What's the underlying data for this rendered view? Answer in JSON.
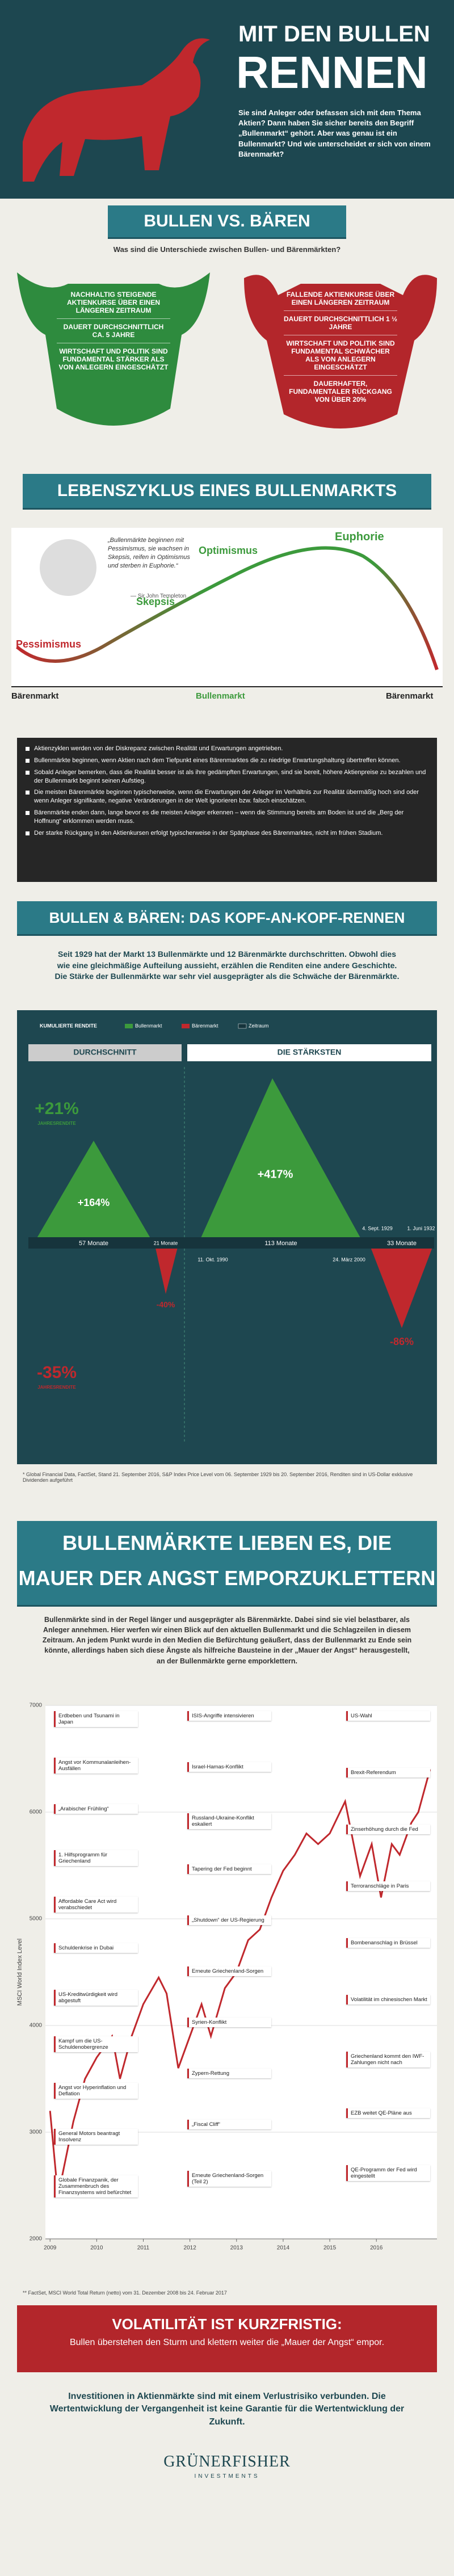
{
  "header": {
    "title_1": "MIT DEN BULLEN",
    "title_2": "RENNEN",
    "intro": "Sie sind Anleger oder befassen sich mit dem Thema Aktien? Dann haben Sie sicher bereits den Begriff „Bullenmarkt“ gehört. Aber was genau ist ein Bullenmarkt? Und wie unterscheidet er sich von einem Bärenmarkt?"
  },
  "versus": {
    "title": "BULLEN VS. BÄREN",
    "subtitle": "Was sind die Unterschiede zwischen Bullen- und Bärenmärkten?",
    "bull": [
      "NACHHALTIG STEIGENDE AKTIENKURSE ÜBER EINEN LÄNGEREN ZEITRAUM",
      "DAUERT DURCHSCHNITTLICH CA. 5 JAHRE",
      "WIRTSCHAFT UND POLITIK SIND FUNDAMENTAL STÄRKER ALS VON ANLEGERN EINGESCHÄTZT"
    ],
    "bear": [
      "FALLENDE AKTIENKURSE ÜBER EINEN LÄNGEREN ZEITRAUM",
      "DAUERT DURCHSCHNITTLICH 1 ½ JAHRE",
      "WIRTSCHAFT UND POLITIK SIND FUNDAMENTAL SCHWÄCHER ALS VON ANLEGERN EINGESCHÄTZT",
      "DAUERHAFTER, FUNDAMENTALER RÜCKGANG VON ÜBER 20%"
    ]
  },
  "cycle": {
    "title": "LEBENSZYKLUS EINES BULLENMARKTS",
    "quote": "„Bullenmärkte beginnen mit Pessimismus, sie wachsen in Skepsis, reifen in Optimismus und sterben in Euphorie.“",
    "quote_author": "— Sir John Templeton",
    "phases": [
      "Pessimismus",
      "Skepsis",
      "Optimismus",
      "Euphorie"
    ],
    "markets": [
      "Bärenmarkt",
      "Bullenmarkt",
      "Bärenmarkt"
    ],
    "bullets": [
      "Aktienzyklen werden von der Diskrepanz zwischen Realität und Erwartungen angetrieben.",
      "Bullenmärkte beginnen, wenn Aktien nach dem Tiefpunkt eines Bärenmarktes die zu niedrige Erwartungshaltung übertreffen können.",
      "Sobald Anleger bemerken, dass die Realität besser ist als ihre gedämpften Erwartungen, sind sie bereit, höhere Aktienpreise zu bezahlen und der Bullenmarkt beginnt seinen Aufstieg.",
      "Die meisten Bärenmärkte beginnen typischerweise, wenn die Erwartungen der Anleger im Verhältnis zur Realität übermäßig hoch sind oder wenn Anleger signifikante, negative Veränderungen in der Welt ignorieren bzw. falsch einschätzen.",
      "Bärenmärkte enden dann, lange bevor es die meisten Anleger erkennen – wenn die Stimmung bereits am Boden ist und die „Berg der Hoffnung“ erklommen werden muss.",
      "Der starke Rückgang in den Aktienkursen erfolgt typischerweise in der Spätphase des Bärenmarktes, nicht im frühen Stadium."
    ]
  },
  "race": {
    "title": "BULLEN & BÄREN:  DAS KOPF-AN-KOPF-RENNEN",
    "intro": "Seit 1929 hat der Markt 13 Bullenmärkte und 12 Bärenmärkte durchschritten. Obwohl dies wie eine gleichmäßige Aufteilung aussieht, erzählen die Renditen eine andere Geschichte. Die Stärke der Bullenmärkte war sehr viel ausgeprägter als die Schwäche der Bärenmärkte.",
    "legend": [
      "KUMULIERTE RENDITE",
      "Bullenmarkt",
      "Bärenmarkt",
      "Zeitraum"
    ],
    "average": {
      "title": "DURCHSCHNITT",
      "bull_annual": "+21%",
      "annual_label": "JAHRESRENDITE",
      "bull_total": "+164%",
      "bull_months": "57 Monate",
      "bear_months": "21 Monate",
      "bear_total": "-40%",
      "bear_annual": "-35%"
    },
    "strongest": {
      "title": "DIE STÄRKSTEN",
      "bull_total": "+417%",
      "bull_months": "113 Monate",
      "bull_start": "11. Okt. 1990",
      "bull_end": "24. März 2000",
      "bear_start": "4. Sept. 1929",
      "bear_end": "1. Juni 1932",
      "bear_months": "33 Monate",
      "bear_total": "-86%"
    },
    "footnote": "* Global Financial Data, FactSet, Stand 21. September 2016, S&P Index Price Level vom 06. September 1929 bis 20. September 2016, Renditen sind in US-Dollar exklusive Dividenden aufgeführt"
  },
  "wall": {
    "title_1": "BULLENMÄRKTE LIEBEN ES, DIE",
    "title_2": "MAUER DER ANGST EMPORZUKLETTERN",
    "intro": "Bullenmärkte sind in der Regel länger und ausgeprägter als Bärenmärkte. Dabei sind sie viel belastbarer, als Anleger annehmen. Hier werfen wir einen Blick auf den aktuellen Bullenmarkt und die Schlagzeilen in diesem Zeitraum. An jedem Punkt wurde in den Medien die Befürchtung geäußert, dass der Bullenmarkt zu Ende sein könnte, allerdings haben sich diese Ängste als hilfreiche Bausteine in der „Mauer der Angst“ herausgestellt, an der Bullenmärkte gerne emporklettern.",
    "footnote": "** FactSet, MSCI World Total Return (netto) vom 31. Dezember 2008 bis 24. Februar 2017"
  },
  "chart_data": {
    "type": "line",
    "y_label": "MSCI World Index Level",
    "color": "#c0282d",
    "annotations": [
      "Erdbeben und Tsunami in Japan",
      "Angst vor Kommunalanleihen-Ausfällen",
      "„Arabischer Frühling“",
      "1. Hilfsprogramm für Griechenland",
      "Affordable Care Act wird verabschiedet",
      "Schuldenkrise in Dubai",
      "US-Kreditwürdigkeit wird abgestuft",
      "Kampf um die US-Schuldenobergrenze",
      "Angst vor Hyperinflation und Deflation",
      "General Motors beantragt Insolvenz",
      "Globale Finanzpanik, der Zusammenbruch des Finanzsystems wird befürchtet",
      "ISIS-Angriffe intensivieren",
      "Israel-Hamas-Konflikt",
      "Russland-Ukraine-Konflikt eskaliert",
      "Tapering der Fed beginnt",
      "„Shutdown“ der US-Regierung",
      "Erneute Griechenland-Sorgen",
      "Syrien-Konflikt",
      "Zypern-Rettung",
      "„Fiscal Cliff“",
      "Erneute Griechenland-Sorgen (Teil 2)",
      "US-Wahl",
      "Brexit-Referendum",
      "Zinserhöhung durch die Fed",
      "Terroranschläge in Paris",
      "Bombenanschlag in Brüssel",
      "Volatilität im chinesischen Markt",
      "Griechenland kommt den IWF-Zahlungen nicht nach",
      "EZB weitet QE-Pläne aus",
      "QE-Programm der Fed wird eingestellt"
    ],
    "x": [
      2009.0,
      2009.17,
      2009.5,
      2009.75,
      2010.0,
      2010.33,
      2010.5,
      2010.75,
      2011.0,
      2011.33,
      2011.5,
      2011.75,
      2012.0,
      2012.25,
      2012.45,
      2012.75,
      2013.0,
      2013.25,
      2013.5,
      2013.75,
      2014.0,
      2014.25,
      2014.5,
      2014.75,
      2015.0,
      2015.33,
      2015.65,
      2015.9,
      2016.1,
      2016.33,
      2016.5,
      2016.75,
      2016.9,
      2017.15
    ],
    "values": [
      3200,
      2400,
      3100,
      3500,
      3700,
      3900,
      3500,
      3900,
      4200,
      4450,
      4300,
      3600,
      3900,
      4200,
      3900,
      4350,
      4500,
      4800,
      4900,
      5200,
      5450,
      5600,
      5800,
      5700,
      5800,
      6100,
      5400,
      5700,
      5200,
      5700,
      5600,
      5900,
      6000,
      6400
    ],
    "xlim": [
      2008.9,
      2017.3
    ],
    "xticks": [
      2009,
      2010,
      2011,
      2012,
      2013,
      2014,
      2015,
      2016
    ],
    "ylim": [
      2000,
      7000
    ],
    "yticks": [
      2000,
      3000,
      4000,
      5000,
      6000,
      7000
    ],
    "grid": true
  },
  "banner": {
    "title": "VOLATILITÄT IST KURZFRISTIG:",
    "text": "Bullen überstehen den Sturm und klettern weiter die „Mauer der Angst“ empor."
  },
  "closing": {
    "text": "Investitionen in Aktienmärkte sind mit einem Verlustrisiko verbunden. Die Wertentwicklung der Vergangenheit ist keine Garantie für die Wertentwicklung der Zukunft.",
    "logo_1": "GRÜNERFISHER",
    "logo_2": "INVESTMENTS"
  }
}
